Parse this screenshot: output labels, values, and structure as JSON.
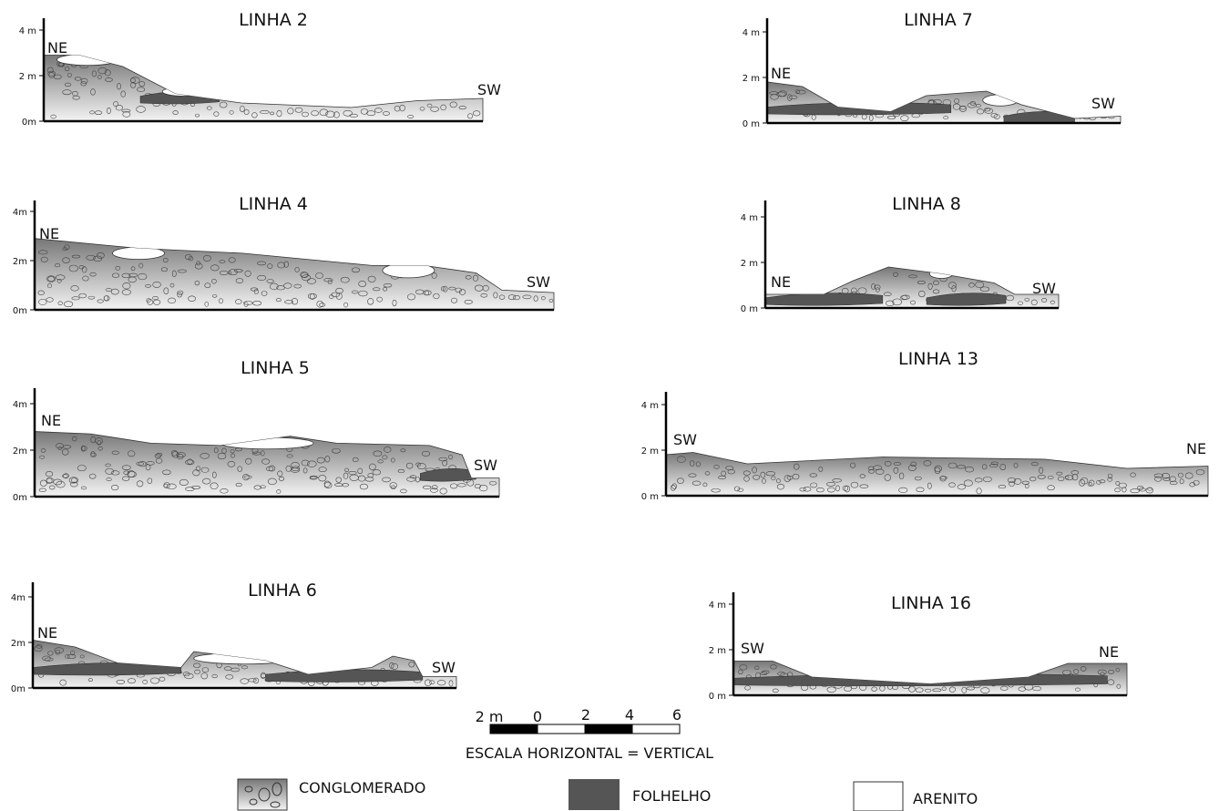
{
  "panels": [
    {
      "title": "LINHA 2",
      "y_labels": [
        "4 m",
        "2 m",
        "0m"
      ],
      "left_label": "NE",
      "right_label": "SW"
    },
    {
      "title": "LINHA 7",
      "y_labels": [
        "4 m",
        "2 m",
        "0 m"
      ],
      "left_label": "NE",
      "right_label": "SW"
    },
    {
      "title": "LINHA 4",
      "y_labels": [
        "4m",
        "2m",
        "0m"
      ],
      "left_label": "NE",
      "right_label": "SW"
    },
    {
      "title": "LINHA 8",
      "y_labels": [
        "4 m",
        "2 m",
        "0 m"
      ],
      "left_label": "NE",
      "right_label": "SW"
    },
    {
      "title": "LINHA 5",
      "y_labels": [
        "4m",
        "2m",
        "0m"
      ],
      "left_label": "NE",
      "right_label": "SW"
    },
    {
      "title": "LINHA 13",
      "y_labels": [
        "4 m",
        "2 m",
        "0 m"
      ],
      "left_label": "SW",
      "right_label": "NE"
    },
    {
      "title": "LINHA 6",
      "y_labels": [
        "4m",
        "2m",
        "0m"
      ],
      "left_label": "NE",
      "right_label": "SW"
    },
    {
      "title": "LINHA 16",
      "y_labels": [
        "4 m",
        "2 m",
        "0 m"
      ],
      "left_label": "SW",
      "right_label": "NE"
    }
  ],
  "scale": {
    "labels": [
      "2 m",
      "0",
      "2",
      "4",
      "6"
    ],
    "caption": "ESCALA HORIZONTAL = VERTICAL"
  },
  "legend": [
    {
      "label": "CONGLOMERADO"
    },
    {
      "label": "FOLHELHO"
    },
    {
      "label": "ARENITO"
    }
  ]
}
